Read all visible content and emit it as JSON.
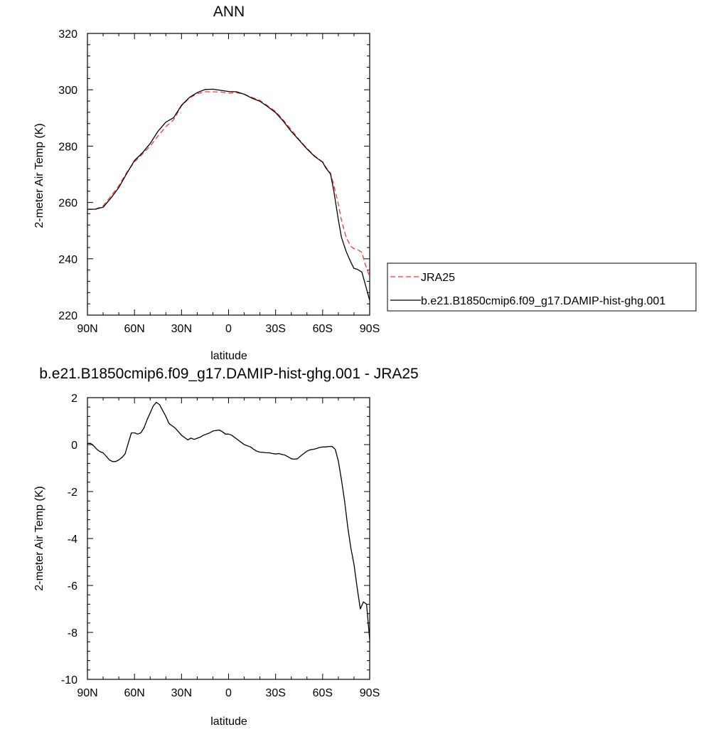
{
  "chart_data": [
    {
      "type": "line",
      "title": "ANN",
      "xlabel": "latitude",
      "ylabel": "2-meter Air Temp (K)",
      "xlim": [
        90,
        -90
      ],
      "ylim": [
        220,
        320
      ],
      "x_ticks": [
        90,
        60,
        30,
        0,
        -30,
        -60,
        -90
      ],
      "x_tick_labels": [
        "90N",
        "60N",
        "30N",
        "0",
        "30S",
        "60S",
        "90S"
      ],
      "y_ticks": [
        220,
        240,
        260,
        280,
        300,
        320
      ],
      "y_tick_labels": [
        "220",
        "240",
        "260",
        "280",
        "300",
        "320"
      ],
      "grid": false,
      "legend_position": "right",
      "series": [
        {
          "name": "JRA25",
          "color": "#ff3333",
          "style": "dashed",
          "x": [
            90,
            85,
            80,
            75,
            70,
            65,
            60,
            55,
            50,
            45,
            40,
            35,
            30,
            25,
            20,
            15,
            10,
            5,
            0,
            -5,
            -10,
            -15,
            -20,
            -25,
            -30,
            -35,
            -40,
            -45,
            -50,
            -55,
            -60,
            -62,
            -65,
            -67,
            -70,
            -72,
            -75,
            -78,
            -80,
            -82,
            -85,
            -87,
            -90
          ],
          "y": [
            257.5,
            257.6,
            258.8,
            262.3,
            265.9,
            270.6,
            274.4,
            277.2,
            280.0,
            283.6,
            286.9,
            289.4,
            294.3,
            297.1,
            298.6,
            299.3,
            299.3,
            299.2,
            298.8,
            299.0,
            298.4,
            297.3,
            296.2,
            294.3,
            292.3,
            289.2,
            285.8,
            282.3,
            279.2,
            276.5,
            274.4,
            272.6,
            270.4,
            266.4,
            259.4,
            253.6,
            247.6,
            244.4,
            243.6,
            243.3,
            242.3,
            238.3,
            233.6
          ]
        },
        {
          "name": "b.e21.B1850cmip6.f09_g17.DAMIP-hist-ghg.001",
          "color": "#000000",
          "style": "solid",
          "x": [
            90,
            85,
            80,
            75,
            70,
            65,
            60,
            55,
            50,
            45,
            40,
            35,
            30,
            25,
            20,
            15,
            10,
            5,
            0,
            -5,
            -10,
            -15,
            -20,
            -25,
            -30,
            -35,
            -40,
            -45,
            -50,
            -55,
            -60,
            -62,
            -65,
            -67,
            -70,
            -72,
            -75,
            -78,
            -80,
            -82,
            -85,
            -87,
            -90
          ],
          "y": [
            257.6,
            257.6,
            258.3,
            261.6,
            265.3,
            270.2,
            274.9,
            277.6,
            280.9,
            285.3,
            288.5,
            290.1,
            294.5,
            297.3,
            299.0,
            300.1,
            300.2,
            299.8,
            299.4,
            299.3,
            298.4,
            297.0,
            295.9,
            294.0,
            291.9,
            288.8,
            285.2,
            282.1,
            279.0,
            276.3,
            274.3,
            272.3,
            270.1,
            264.4,
            253.9,
            247.6,
            242.6,
            238.8,
            236.6,
            236.3,
            235.3,
            231.3,
            225.2
          ]
        }
      ]
    },
    {
      "type": "line",
      "title": "b.e21.B1850cmip6.f09_g17.DAMIP-hist-ghg.001 - JRA25",
      "xlabel": "latitude",
      "ylabel": "2-meter Air Temp (K)",
      "xlim": [
        90,
        -90
      ],
      "ylim": [
        -10,
        2
      ],
      "x_ticks": [
        90,
        60,
        30,
        0,
        -30,
        -60,
        -90
      ],
      "x_tick_labels": [
        "90N",
        "60N",
        "30N",
        "0",
        "30S",
        "60S",
        "90S"
      ],
      "y_ticks": [
        -10,
        -8,
        -6,
        -4,
        -2,
        0,
        2
      ],
      "y_tick_labels": [
        "-10",
        "-8",
        "-6",
        "-4",
        "-2",
        "0",
        "2"
      ],
      "grid": false,
      "series": [
        {
          "color": "#000000",
          "style": "solid",
          "x": [
            90,
            88,
            86,
            84,
            82,
            80,
            78,
            76,
            74,
            72,
            70,
            68,
            66,
            64,
            62,
            60,
            58,
            56,
            54,
            52,
            50,
            48,
            46,
            44,
            42,
            40,
            38,
            36,
            34,
            32,
            30,
            28,
            26,
            24,
            22,
            20,
            18,
            16,
            14,
            12,
            10,
            8,
            6,
            4,
            2,
            0,
            -2,
            -4,
            -6,
            -8,
            -10,
            -12,
            -14,
            -16,
            -18,
            -20,
            -22,
            -24,
            -26,
            -28,
            -30,
            -32,
            -34,
            -36,
            -38,
            -40,
            -42,
            -44,
            -46,
            -48,
            -50,
            -52,
            -54,
            -56,
            -58,
            -60,
            -62,
            -64,
            -66,
            -68,
            -70,
            -72,
            -74,
            -76,
            -78,
            -80,
            -82,
            -84,
            -86,
            -88,
            -90
          ],
          "y": [
            0.05,
            0.05,
            -0.05,
            -0.2,
            -0.3,
            -0.35,
            -0.5,
            -0.65,
            -0.72,
            -0.72,
            -0.65,
            -0.55,
            -0.4,
            0.05,
            0.5,
            0.5,
            0.45,
            0.5,
            0.7,
            1.05,
            1.35,
            1.65,
            1.8,
            1.7,
            1.45,
            1.2,
            0.9,
            0.8,
            0.7,
            0.55,
            0.4,
            0.3,
            0.2,
            0.28,
            0.22,
            0.27,
            0.32,
            0.4,
            0.45,
            0.5,
            0.58,
            0.6,
            0.62,
            0.55,
            0.45,
            0.45,
            0.4,
            0.3,
            0.2,
            0.1,
            0.0,
            -0.05,
            -0.1,
            -0.2,
            -0.28,
            -0.32,
            -0.33,
            -0.35,
            -0.35,
            -0.38,
            -0.4,
            -0.38,
            -0.42,
            -0.45,
            -0.52,
            -0.6,
            -0.62,
            -0.6,
            -0.48,
            -0.38,
            -0.28,
            -0.22,
            -0.2,
            -0.17,
            -0.12,
            -0.1,
            -0.1,
            -0.08,
            -0.08,
            -0.2,
            -0.7,
            -1.5,
            -2.4,
            -3.5,
            -4.4,
            -5.1,
            -6.1,
            -7.0,
            -6.7,
            -6.8,
            -8.3
          ]
        }
      ]
    }
  ]
}
